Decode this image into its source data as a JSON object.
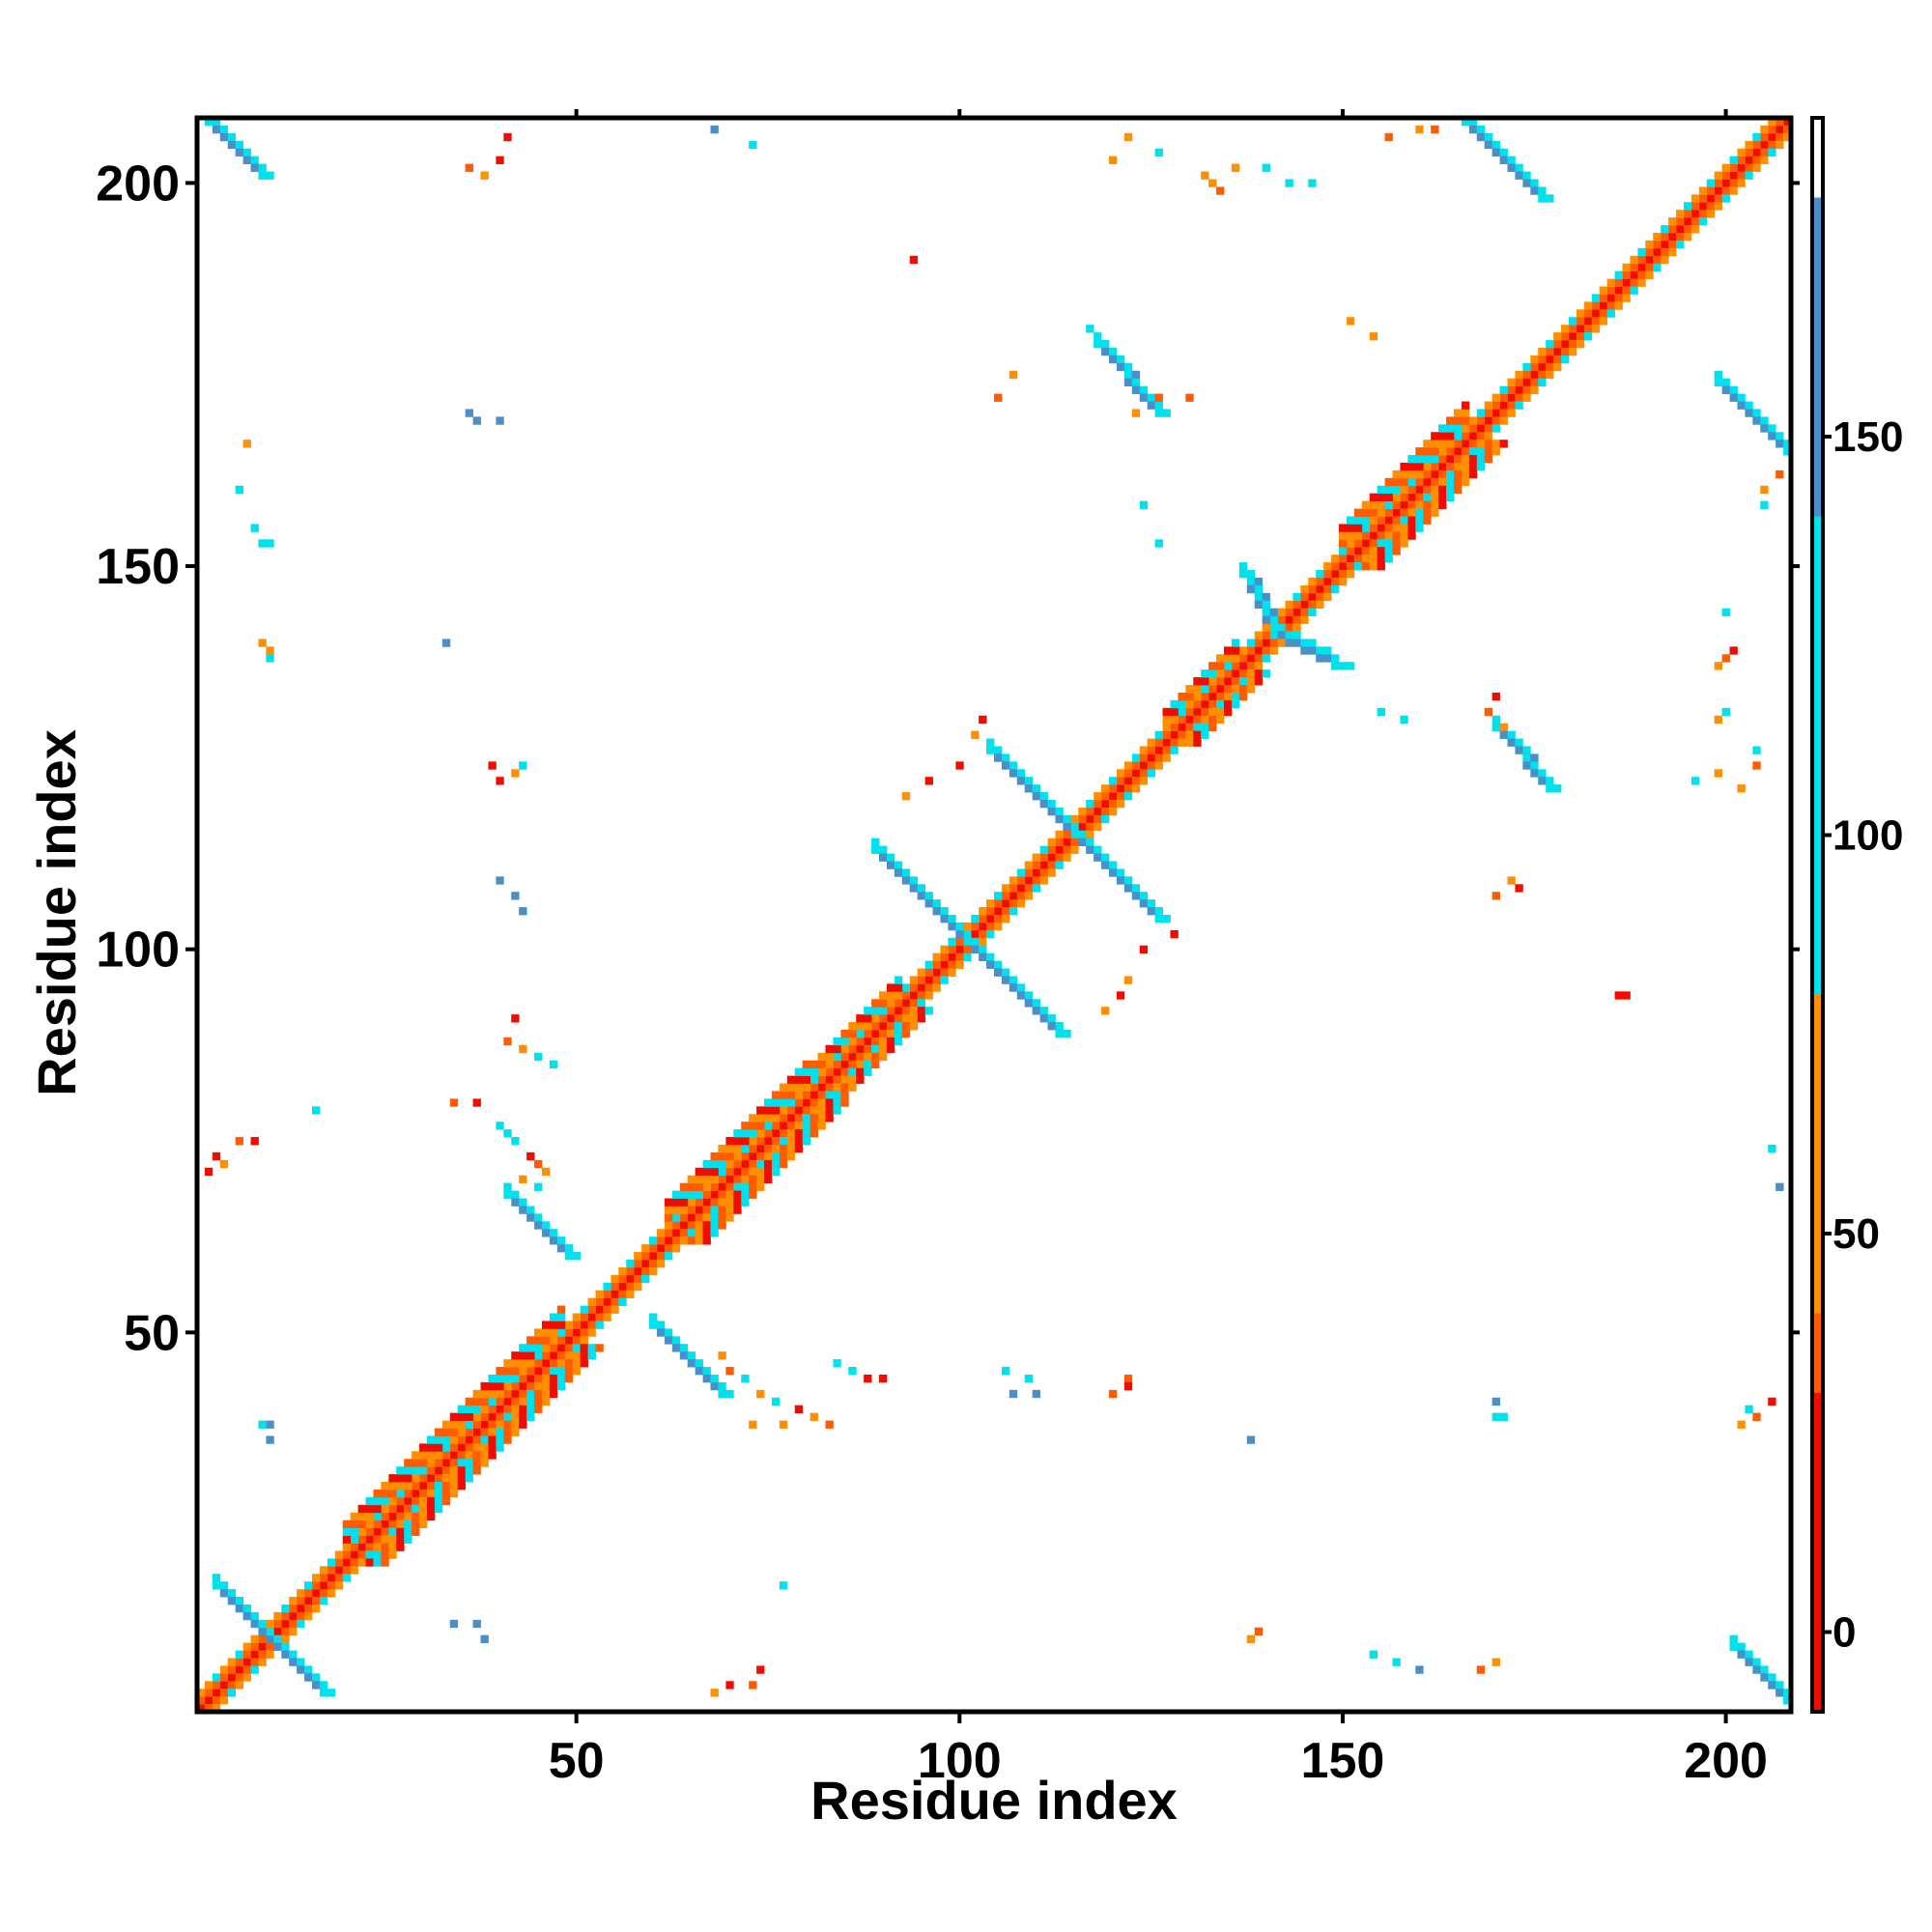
{
  "chart_data": {
    "type": "heatmap",
    "xlabel": "Residue index",
    "ylabel": "Residue index",
    "xlim": [
      1,
      208
    ],
    "ylim": [
      1,
      208
    ],
    "x_ticks": [
      50,
      100,
      150,
      200
    ],
    "y_ticks": [
      50,
      100,
      150,
      200
    ],
    "colorbar": {
      "range": [
        -10,
        190
      ],
      "ticks": [
        0,
        50,
        100,
        150
      ],
      "bins": [
        {
          "from": -10,
          "to": 30,
          "color": "#f00d00"
        },
        {
          "from": 30,
          "to": 40,
          "color": "#ff5b00"
        },
        {
          "from": 40,
          "to": 80,
          "color": "#ff8f00"
        },
        {
          "from": 80,
          "to": 140,
          "color": "#00e1ee"
        },
        {
          "from": 140,
          "to": 180,
          "color": "#4a8fc8"
        },
        {
          "from": 180,
          "to": 190,
          "color": "#ffffff"
        }
      ]
    },
    "colors": {
      "red": "#f00d00",
      "orange_red": "#ff5b00",
      "orange": "#ff8f00",
      "cyan": "#00e1ee",
      "steel_blue": "#4a8fc8"
    },
    "diagonal": {
      "from": 1,
      "to": 208,
      "core_color": "red"
    },
    "diagonal_bands": [
      {
        "from": 20,
        "to": 48,
        "band_width": 3
      },
      {
        "from": 62,
        "to": 80,
        "band_width": 3
      },
      {
        "from": 80,
        "to": 92,
        "band_width": 2
      },
      {
        "from": 127,
        "to": 136,
        "band_width": 2
      },
      {
        "from": 150,
        "to": 166,
        "band_width": 3
      }
    ],
    "antidiagonal_strands": [
      {
        "x1": 3,
        "y1": 17,
        "x2": 17,
        "y2": 3,
        "color": "steel_blue",
        "width": 2
      },
      {
        "x1": 2,
        "y1": 208,
        "x2": 9,
        "y2": 201,
        "color": "steel_blue",
        "width": 2
      },
      {
        "x1": 201,
        "y1": 9,
        "x2": 208,
        "y2": 2,
        "color": "steel_blue",
        "width": 2
      },
      {
        "x1": 41,
        "y1": 68,
        "x2": 49,
        "y2": 60,
        "color": "steel_blue",
        "width": 2
      },
      {
        "x1": 60,
        "y1": 51,
        "x2": 69,
        "y2": 42,
        "color": "steel_blue",
        "width": 2
      },
      {
        "x1": 89,
        "y1": 113,
        "x2": 101,
        "y2": 101,
        "color": "steel_blue",
        "width": 2
      },
      {
        "x1": 101,
        "y1": 101,
        "x2": 113,
        "y2": 89,
        "color": "steel_blue",
        "width": 2
      },
      {
        "x1": 104,
        "y1": 126,
        "x2": 115,
        "y2": 115,
        "color": "steel_blue",
        "width": 2
      },
      {
        "x1": 115,
        "y1": 115,
        "x2": 126,
        "y2": 104,
        "color": "steel_blue",
        "width": 2
      },
      {
        "x1": 137,
        "y1": 149,
        "x2": 141,
        "y2": 141,
        "color": "steel_blue",
        "width": 2
      },
      {
        "x1": 141,
        "y1": 141,
        "x2": 149,
        "y2": 137,
        "color": "steel_blue",
        "width": 2
      },
      {
        "x1": 118,
        "y1": 179,
        "x2": 126,
        "y2": 170,
        "color": "steel_blue",
        "width": 2
      },
      {
        "x1": 166,
        "y1": 208,
        "x2": 176,
        "y2": 198,
        "color": "steel_blue",
        "width": 2
      },
      {
        "x1": 170,
        "y1": 129,
        "x2": 177,
        "y2": 121,
        "color": "steel_blue",
        "width": 2
      },
      {
        "x1": 199,
        "y1": 174,
        "x2": 208,
        "y2": 165,
        "color": "steel_blue",
        "width": 2
      }
    ],
    "scattered_contacts": [
      [
        3,
        73,
        "red"
      ],
      [
        4,
        72,
        "orange"
      ],
      [
        2,
        71,
        "red"
      ],
      [
        6,
        75,
        "orange_red"
      ],
      [
        8,
        75,
        "red"
      ],
      [
        10,
        38,
        "steel_blue"
      ],
      [
        9,
        38,
        "cyan"
      ],
      [
        10,
        36,
        "steel_blue"
      ],
      [
        7,
        166,
        "orange"
      ],
      [
        6,
        160,
        "cyan"
      ],
      [
        8,
        155,
        "cyan"
      ],
      [
        9,
        153,
        "cyan"
      ],
      [
        10,
        153,
        "cyan"
      ],
      [
        9,
        140,
        "orange"
      ],
      [
        10,
        139,
        "orange"
      ],
      [
        10,
        138,
        "cyan"
      ],
      [
        16,
        79,
        "cyan"
      ],
      [
        36,
        170,
        "steel_blue"
      ],
      [
        37,
        169,
        "steel_blue"
      ],
      [
        40,
        169,
        "steel_blue"
      ],
      [
        33,
        140,
        "steel_blue"
      ],
      [
        36,
        202,
        "orange_red"
      ],
      [
        38,
        201,
        "orange"
      ],
      [
        40,
        203,
        "red"
      ],
      [
        41,
        206,
        "red"
      ],
      [
        39,
        124,
        "red"
      ],
      [
        40,
        122,
        "red"
      ],
      [
        42,
        123,
        "orange"
      ],
      [
        43,
        124,
        "cyan"
      ],
      [
        40,
        109,
        "steel_blue"
      ],
      [
        42,
        107,
        "steel_blue"
      ],
      [
        43,
        105,
        "steel_blue"
      ],
      [
        42,
        91,
        "red"
      ],
      [
        41,
        88,
        "orange_red"
      ],
      [
        43,
        87,
        "orange"
      ],
      [
        45,
        86,
        "cyan"
      ],
      [
        47,
        85,
        "cyan"
      ],
      [
        34,
        80,
        "orange_red"
      ],
      [
        37,
        80,
        "red"
      ],
      [
        40,
        77,
        "cyan"
      ],
      [
        41,
        76,
        "cyan"
      ],
      [
        42,
        75,
        "cyan"
      ],
      [
        44,
        73,
        "red"
      ],
      [
        45,
        72,
        "orange_red"
      ],
      [
        46,
        71,
        "orange"
      ],
      [
        43,
        70,
        "orange"
      ],
      [
        45,
        69,
        "cyan"
      ],
      [
        34,
        12,
        "steel_blue"
      ],
      [
        37,
        12,
        "steel_blue"
      ],
      [
        38,
        10,
        "steel_blue"
      ],
      [
        68,
        207,
        "steel_blue"
      ],
      [
        73,
        205,
        "cyan"
      ],
      [
        69,
        47,
        "orange"
      ],
      [
        70,
        45,
        "orange_red"
      ],
      [
        72,
        44,
        "cyan"
      ],
      [
        74,
        42,
        "orange"
      ],
      [
        76,
        41,
        "cyan"
      ],
      [
        79,
        40,
        "red"
      ],
      [
        81,
        39,
        "orange"
      ],
      [
        83,
        38,
        "orange_red"
      ],
      [
        84,
        46,
        "cyan"
      ],
      [
        86,
        45,
        "cyan"
      ],
      [
        88,
        44,
        "red"
      ],
      [
        90,
        44,
        "red"
      ],
      [
        73,
        38,
        "orange"
      ],
      [
        77,
        38,
        "orange"
      ],
      [
        68,
        3,
        "orange"
      ],
      [
        70,
        4,
        "red"
      ],
      [
        74,
        6,
        "red"
      ],
      [
        73,
        4,
        "orange_red"
      ],
      [
        77,
        17,
        "cyan"
      ],
      [
        94,
        190,
        "red"
      ],
      [
        105,
        172,
        "orange_red"
      ],
      [
        107,
        175,
        "orange"
      ],
      [
        117,
        181,
        "cyan"
      ],
      [
        100,
        124,
        "red"
      ],
      [
        96,
        122,
        "red"
      ],
      [
        93,
        120,
        "orange"
      ],
      [
        103,
        130,
        "red"
      ],
      [
        102,
        128,
        "orange"
      ],
      [
        121,
        94,
        "red"
      ],
      [
        122,
        96,
        "orange"
      ],
      [
        119,
        92,
        "orange"
      ],
      [
        124,
        100,
        "red"
      ],
      [
        128,
        102,
        "red"
      ],
      [
        106,
        45,
        "cyan"
      ],
      [
        109,
        44,
        "cyan"
      ],
      [
        107,
        42,
        "steel_blue"
      ],
      [
        110,
        42,
        "steel_blue"
      ],
      [
        122,
        44,
        "orange_red"
      ],
      [
        122,
        43,
        "red"
      ],
      [
        120,
        42,
        "orange_red"
      ],
      [
        123,
        170,
        "orange"
      ],
      [
        126,
        172,
        "orange_red"
      ],
      [
        130,
        172,
        "orange_red"
      ],
      [
        124,
        158,
        "cyan"
      ],
      [
        126,
        153,
        "cyan"
      ],
      [
        120,
        203,
        "orange"
      ],
      [
        122,
        206,
        "orange"
      ],
      [
        126,
        204,
        "cyan"
      ],
      [
        132,
        201,
        "orange"
      ],
      [
        133,
        200,
        "orange"
      ],
      [
        134,
        199,
        "orange_red"
      ],
      [
        136,
        202,
        "orange"
      ],
      [
        140,
        202,
        "cyan"
      ],
      [
        143,
        200,
        "cyan"
      ],
      [
        146,
        200,
        "cyan"
      ],
      [
        138,
        36,
        "steel_blue"
      ],
      [
        138,
        10,
        "orange"
      ],
      [
        139,
        11,
        "orange_red"
      ],
      [
        151,
        137,
        "cyan"
      ],
      [
        155,
        131,
        "cyan"
      ],
      [
        158,
        130,
        "cyan"
      ],
      [
        154,
        8,
        "cyan"
      ],
      [
        157,
        7,
        "cyan"
      ],
      [
        160,
        6,
        "steel_blue"
      ],
      [
        168,
        6,
        "orange_red"
      ],
      [
        170,
        7,
        "orange"
      ],
      [
        151,
        182,
        "orange"
      ],
      [
        154,
        180,
        "orange"
      ],
      [
        156,
        206,
        "orange_red"
      ],
      [
        160,
        207,
        "orange"
      ],
      [
        162,
        207,
        "orange_red"
      ],
      [
        170,
        133,
        "red"
      ],
      [
        169,
        131,
        "orange_red"
      ],
      [
        171,
        129,
        "orange"
      ],
      [
        170,
        107,
        "orange_red"
      ],
      [
        172,
        109,
        "orange"
      ],
      [
        173,
        108,
        "red"
      ],
      [
        186,
        94,
        "red"
      ],
      [
        187,
        94,
        "red"
      ],
      [
        170,
        41,
        "steel_blue"
      ],
      [
        171,
        39,
        "cyan"
      ],
      [
        170,
        39,
        "cyan"
      ],
      [
        199,
        137,
        "orange"
      ],
      [
        200,
        138,
        "orange_red"
      ],
      [
        201,
        139,
        "red"
      ],
      [
        200,
        144,
        "cyan"
      ],
      [
        200,
        131,
        "cyan"
      ],
      [
        199,
        130,
        "orange"
      ],
      [
        204,
        126,
        "cyan"
      ],
      [
        204,
        124,
        "orange_red"
      ],
      [
        196,
        122,
        "cyan"
      ],
      [
        199,
        123,
        "orange"
      ],
      [
        202,
        121,
        "orange"
      ],
      [
        205,
        160,
        "orange"
      ],
      [
        207,
        162,
        "orange_red"
      ],
      [
        205,
        158,
        "cyan"
      ],
      [
        206,
        74,
        "cyan"
      ],
      [
        207,
        69,
        "steel_blue"
      ],
      [
        203,
        40,
        "cyan"
      ],
      [
        202,
        38,
        "orange"
      ],
      [
        204,
        39,
        "orange_red"
      ],
      [
        206,
        41,
        "red"
      ]
    ]
  }
}
